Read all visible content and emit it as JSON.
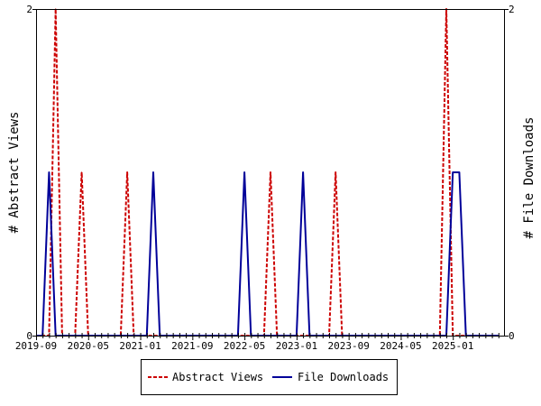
{
  "chart_data": {
    "type": "line",
    "x_tick_labels": [
      "2019-09",
      "2020-05",
      "2021-01",
      "2021-09",
      "2022-05",
      "2023-01",
      "2023-09",
      "2024-05",
      "2025-01"
    ],
    "y_left_label": "# Abstract Views",
    "y_right_label": "# File Downloads",
    "y_left_ticks": [
      "0",
      "2"
    ],
    "y_right_ticks": [
      "0",
      "2"
    ],
    "ylim": [
      0,
      2
    ],
    "x_range_months": [
      "2019-09",
      "2025-08"
    ],
    "legend_position": "bottom-center",
    "grid": false,
    "series": [
      {
        "name": "Abstract Views",
        "color": "#cc0000",
        "style": "dashed",
        "points": [
          {
            "x": "2019-12",
            "y": 2
          },
          {
            "x": "2020-04",
            "y": 1
          },
          {
            "x": "2020-11",
            "y": 1
          },
          {
            "x": "2022-09",
            "y": 1
          },
          {
            "x": "2023-07",
            "y": 1
          },
          {
            "x": "2024-12",
            "y": 2
          }
        ]
      },
      {
        "name": "File Downloads",
        "color": "#000099",
        "style": "solid",
        "points": [
          {
            "x": "2019-11",
            "y": 1
          },
          {
            "x": "2021-03",
            "y": 1
          },
          {
            "x": "2022-05",
            "y": 1
          },
          {
            "x": "2023-02",
            "y": 1
          },
          {
            "x": "2025-01",
            "y": 1
          },
          {
            "x": "2025-02",
            "y": 1
          }
        ]
      }
    ]
  }
}
